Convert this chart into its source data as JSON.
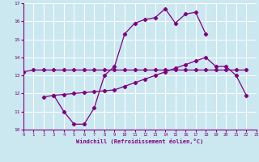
{
  "xlabel": "Windchill (Refroidissement éolien,°C)",
  "background_color": "#cbe8f0",
  "grid_color": "#ffffff",
  "line_color": "#800080",
  "xlim": [
    0,
    23
  ],
  "ylim": [
    10,
    17
  ],
  "xticks": [
    0,
    1,
    2,
    3,
    4,
    5,
    6,
    7,
    8,
    9,
    10,
    11,
    12,
    13,
    14,
    15,
    16,
    17,
    18,
    19,
    20,
    21,
    22,
    23
  ],
  "yticks": [
    10,
    11,
    12,
    13,
    14,
    15,
    16,
    17
  ],
  "line1_x": [
    0,
    1,
    2,
    3,
    4,
    5,
    6,
    7,
    8,
    9,
    10,
    11,
    12,
    13,
    14,
    15,
    16,
    17,
    18,
    19,
    20,
    21,
    22
  ],
  "line1_y": [
    13.2,
    13.3,
    13.3,
    13.3,
    13.3,
    13.3,
    13.3,
    13.3,
    13.3,
    13.3,
    13.3,
    13.3,
    13.3,
    13.3,
    13.3,
    13.3,
    13.3,
    13.3,
    13.3,
    13.3,
    13.3,
    13.3,
    13.3
  ],
  "line2_x": [
    3,
    4,
    5,
    6,
    7,
    8,
    9,
    10,
    11,
    12,
    13,
    14,
    15,
    16,
    17,
    18
  ],
  "line2_y": [
    11.9,
    11.0,
    10.3,
    10.3,
    11.2,
    13.0,
    13.5,
    15.3,
    15.9,
    16.1,
    16.2,
    16.7,
    15.9,
    16.4,
    16.5,
    15.3
  ],
  "line3_x": [
    2,
    3,
    4,
    5,
    6,
    7,
    8,
    9,
    10,
    11,
    12,
    13,
    14,
    15,
    16,
    17,
    18,
    19,
    20,
    21,
    22
  ],
  "line3_y": [
    11.8,
    11.9,
    11.95,
    12.0,
    12.05,
    12.1,
    12.15,
    12.2,
    12.4,
    12.6,
    12.8,
    13.0,
    13.2,
    13.4,
    13.6,
    13.8,
    14.0,
    13.5,
    13.5,
    13.0,
    11.9
  ]
}
